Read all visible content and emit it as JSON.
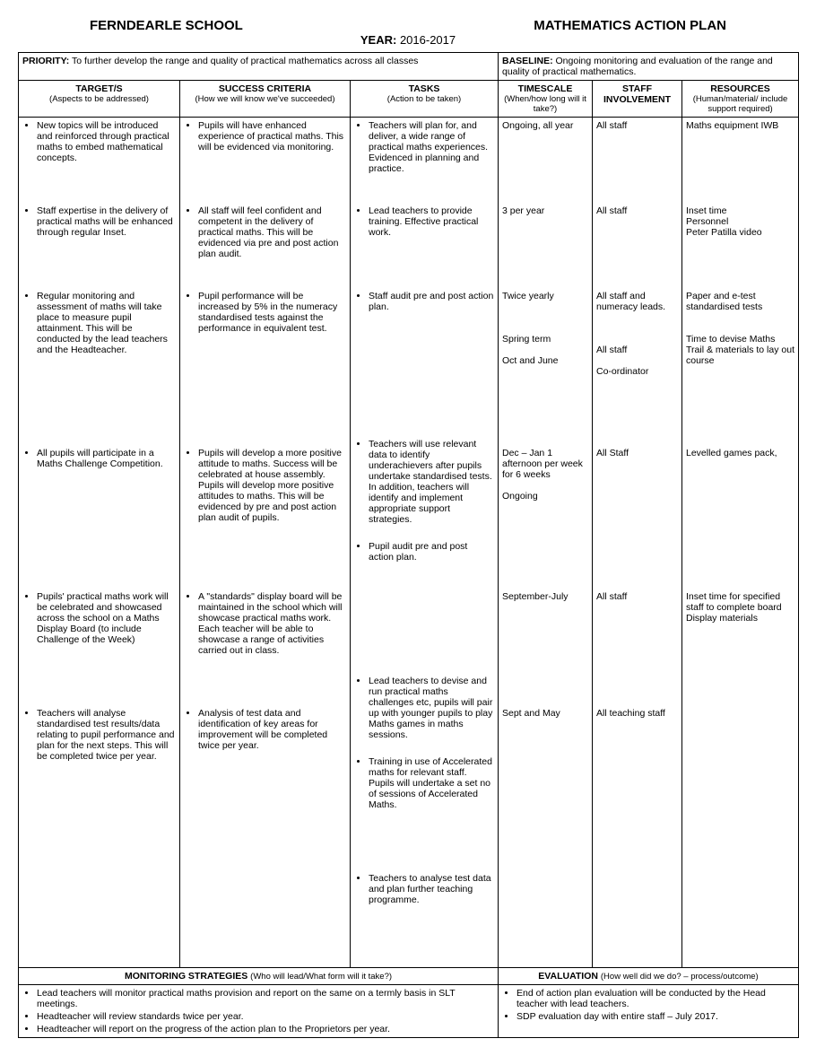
{
  "header": {
    "school": "FERNDEARLE SCHOOL",
    "title": "MATHEMATICS ACTION PLAN",
    "year_label": "YEAR:",
    "year_value": "2016-2017"
  },
  "priority": {
    "label": "PRIORITY:",
    "text": "To further develop the range and quality of practical mathematics across all classes"
  },
  "baseline": {
    "label": "BASELINE:",
    "text": "Ongoing monitoring and evaluation of the range and quality of practical mathematics."
  },
  "columns": {
    "targets": {
      "title": "TARGET/S",
      "sub": "(Aspects to be addressed)"
    },
    "success": {
      "title": "SUCCESS CRITERIA",
      "sub": "(How we will know we've succeeded)"
    },
    "tasks": {
      "title": "TASKS",
      "sub": "(Action to be taken)"
    },
    "timescale": {
      "title": "TIMESCALE",
      "sub": "(When/how long will it take?)"
    },
    "staff": {
      "title": "STAFF INVOLVEMENT",
      "sub": ""
    },
    "resources": {
      "title": "RESOURCES",
      "sub": "(Human/material/ include support required)"
    }
  },
  "targets": [
    "New topics will be introduced and reinforced through practical maths to embed mathematical concepts.",
    "Staff expertise in the delivery of practical maths will be enhanced through regular Inset.",
    "Regular monitoring and assessment of maths will take place to measure pupil attainment.  This will be conducted by the lead teachers and the Headteacher.",
    "All pupils will participate in a Maths Challenge Competition.",
    "Pupils' practical maths work will be celebrated and showcased across the school on a Maths Display Board (to include Challenge of the Week)",
    "Teachers will analyse standardised test results/data relating to pupil performance and plan for the next steps.  This will be completed twice per year."
  ],
  "success": [
    "Pupils will have enhanced experience of practical maths.  This will be evidenced via monitoring.",
    "All staff will feel confident and competent in the delivery of practical maths.  This will be evidenced via pre and post action plan audit.",
    "Pupil performance will be increased by 5% in the numeracy standardised tests against the performance in equivalent test.",
    "Pupils will develop a more positive attitude to maths.  Success will be celebrated at house assembly.  Pupils will develop more positive attitudes to maths.  This will be evidenced by pre and post action plan audit of pupils.",
    "A \"standards\" display board will be maintained in the school which will showcase practical maths work.\nEach teacher will be able to showcase a range of activities carried out in class.",
    "Analysis of test data and identification of key areas for improvement will be completed twice per year."
  ],
  "tasks": [
    "Teachers will plan for, and deliver, a wide range of practical maths experiences.  Evidenced in planning and practice.",
    "Lead teachers to provide training.  Effective practical work.",
    "Staff audit pre and post action plan.\n\nTeachers will use relevant data to identify underachievers after pupils undertake standardised tests.  In addition, teachers will identify and implement appropriate support strategies.",
    "Pupil audit pre and post action plan.\n\nLead teachers to devise and run practical maths challenges etc, pupils will pair up with younger pupils to play Maths games in maths sessions.",
    "Training in use of Accelerated maths for relevant staff.  Pupils will undertake a set no of sessions of Accelerated Maths.",
    "Teachers to analyse test data and plan further teaching programme."
  ],
  "timescale": [
    "Ongoing, all year",
    "3 per year",
    "Twice yearly\n\n\n\nSpring term\n\nOct and June",
    "Dec – Jan 1 afternoon per week for 6 weeks\n\nOngoing",
    "September-July",
    "Sept and May"
  ],
  "staff": [
    "All staff",
    "All staff",
    "All staff and numeracy leads.\n\n\n\nAll staff\n\nCo-ordinator",
    "All Staff",
    "All staff",
    "All teaching staff"
  ],
  "resources": [
    "Maths equipment IWB",
    "Inset time\nPersonnel\nPeter Patilla video",
    "Paper and e-test standardised tests\n\n\nTime to devise Maths Trail & materials to lay out course",
    "Levelled games pack,",
    "Inset time for specified staff to complete board Display materials",
    ""
  ],
  "footer": {
    "monitoring": {
      "title": "MONITORING STRATEGIES",
      "sub": "(Who will lead/What form will it take?)",
      "items": [
        "Lead teachers will monitor practical maths provision and report on the same on a termly basis in SLT meetings.",
        "Headteacher will review standards twice per year.",
        "Headteacher will report on the progress of the action plan to the Proprietors per year."
      ]
    },
    "evaluation": {
      "title": "EVALUATION",
      "sub": "(How well did we do? – process/outcome)",
      "items": [
        "End of action plan evaluation will be conducted by the Head teacher with lead teachers.",
        "SDP evaluation day with entire staff – July 2017."
      ]
    }
  }
}
